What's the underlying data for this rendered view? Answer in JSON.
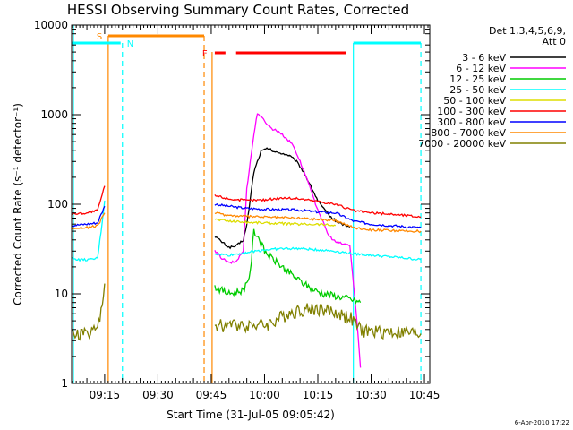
{
  "chart_data": {
    "type": "line",
    "title": "HESSI Observing Summary Count Rates, Corrected",
    "xlabel": "Start Time (31-Jul-05 09:05:42)",
    "ylabel": "Corrected Count Rate (s⁻¹ detector⁻¹)",
    "y_scale": "log",
    "ylim": [
      1,
      10000
    ],
    "xlim": [
      "09:05:42",
      "10:46:30"
    ],
    "x_ticks": [
      "09:15",
      "09:30",
      "09:45",
      "10:00",
      "10:15",
      "10:30",
      "10:45"
    ],
    "y_ticks": [
      "1",
      "10",
      "100",
      "1000",
      "10000"
    ],
    "grid": false,
    "legend_position": "right",
    "legend_title_lines": [
      "Det 1,3,4,5,6,9,",
      "Att 0"
    ],
    "timestamp": "6-Apr-2010 17:22",
    "series": [
      {
        "name": "3 - 6 keV",
        "color": "#000000",
        "points": [
          [
            "09:46",
            44
          ],
          [
            "09:48",
            38
          ],
          [
            "09:50",
            33
          ],
          [
            "09:52",
            34
          ],
          [
            "09:54",
            40
          ],
          [
            "09:55",
            58
          ],
          [
            "09:57",
            230
          ],
          [
            "09:59",
            390
          ],
          [
            "10:01",
            420
          ],
          [
            "10:03",
            380
          ],
          [
            "10:05",
            370
          ],
          [
            "10:07",
            350
          ],
          [
            "10:09",
            300
          ],
          [
            "10:11",
            230
          ],
          [
            "10:13",
            160
          ],
          [
            "10:15",
            110
          ],
          [
            "10:17",
            85
          ],
          [
            "10:19",
            70
          ],
          [
            "10:21",
            62
          ],
          [
            "10:23",
            58
          ],
          [
            "10:24",
            55
          ]
        ]
      },
      {
        "name": "6 - 12 keV",
        "color": "#ff00ff",
        "points": [
          [
            "09:46",
            30
          ],
          [
            "09:48",
            25
          ],
          [
            "09:50",
            22
          ],
          [
            "09:52",
            23
          ],
          [
            "09:54",
            30
          ],
          [
            "09:55",
            150
          ],
          [
            "09:57",
            600
          ],
          [
            "09:58",
            1050
          ],
          [
            "10:00",
            850
          ],
          [
            "10:02",
            700
          ],
          [
            "10:04",
            650
          ],
          [
            "10:06",
            550
          ],
          [
            "10:08",
            460
          ],
          [
            "10:10",
            300
          ],
          [
            "10:12",
            190
          ],
          [
            "10:14",
            110
          ],
          [
            "10:16",
            70
          ],
          [
            "10:18",
            45
          ],
          [
            "10:20",
            38
          ],
          [
            "10:22",
            36
          ],
          [
            "10:24",
            35
          ],
          [
            "10:26",
            5
          ],
          [
            "10:27",
            1.5
          ]
        ]
      },
      {
        "name": "12 - 25 keV",
        "color": "#00cc00",
        "points": [
          [
            "09:46",
            12
          ],
          [
            "09:48",
            11
          ],
          [
            "09:50",
            10
          ],
          [
            "09:52",
            10.5
          ],
          [
            "09:54",
            11
          ],
          [
            "09:56",
            17
          ],
          [
            "09:57",
            50
          ],
          [
            "09:58",
            45
          ],
          [
            "10:00",
            30
          ],
          [
            "10:02",
            25
          ],
          [
            "10:05",
            20
          ],
          [
            "10:08",
            16
          ],
          [
            "10:11",
            13
          ],
          [
            "10:14",
            11
          ],
          [
            "10:17",
            10
          ],
          [
            "10:20",
            9.5
          ],
          [
            "10:23",
            9
          ],
          [
            "10:25",
            8.5
          ],
          [
            "10:27",
            8
          ]
        ]
      },
      {
        "name": "25 - 50 keV",
        "color": "#00ffff",
        "points": [
          [
            "09:05:42",
            25
          ],
          [
            "09:08",
            24
          ],
          [
            "09:11",
            24
          ],
          [
            "09:13",
            25
          ],
          [
            "09:14",
            50
          ],
          [
            "09:15",
            110
          ],
          [
            "09:46",
            28
          ],
          [
            "09:50",
            27
          ],
          [
            "09:55",
            29
          ],
          [
            "10:00",
            31
          ],
          [
            "10:05",
            32
          ],
          [
            "10:10",
            32
          ],
          [
            "10:15",
            31
          ],
          [
            "10:20",
            30
          ],
          [
            "10:25",
            28
          ],
          [
            "10:30",
            27
          ],
          [
            "10:35",
            26
          ],
          [
            "10:40",
            25
          ],
          [
            "10:44",
            24
          ]
        ]
      },
      {
        "name": "50 - 100 keV",
        "color": "#dddd00",
        "points": [
          [
            "09:46",
            68
          ],
          [
            "09:50",
            65
          ],
          [
            "09:55",
            63
          ],
          [
            "10:00",
            62
          ],
          [
            "10:05",
            61
          ],
          [
            "10:10",
            60
          ],
          [
            "10:15",
            60
          ],
          [
            "10:20",
            58
          ]
        ]
      },
      {
        "name": "100 - 300 keV",
        "color": "#ff0000",
        "points": [
          [
            "09:05:42",
            78
          ],
          [
            "09:10",
            80
          ],
          [
            "09:13",
            85
          ],
          [
            "09:15",
            160
          ],
          [
            "09:46",
            125
          ],
          [
            "09:50",
            115
          ],
          [
            "09:55",
            110
          ],
          [
            "10:00",
            112
          ],
          [
            "10:05",
            118
          ],
          [
            "10:10",
            115
          ],
          [
            "10:15",
            108
          ],
          [
            "10:20",
            100
          ],
          [
            "10:25",
            85
          ],
          [
            "10:30",
            80
          ],
          [
            "10:35",
            78
          ],
          [
            "10:40",
            75
          ],
          [
            "10:44",
            72
          ]
        ]
      },
      {
        "name": "300 - 800 keV",
        "color": "#0000ff",
        "points": [
          [
            "09:05:42",
            58
          ],
          [
            "09:10",
            60
          ],
          [
            "09:13",
            62
          ],
          [
            "09:15",
            95
          ],
          [
            "09:46",
            100
          ],
          [
            "09:50",
            95
          ],
          [
            "09:55",
            90
          ],
          [
            "10:00",
            88
          ],
          [
            "10:05",
            87
          ],
          [
            "10:10",
            86
          ],
          [
            "10:15",
            82
          ],
          [
            "10:20",
            80
          ],
          [
            "10:25",
            65
          ],
          [
            "10:30",
            60
          ],
          [
            "10:35",
            58
          ],
          [
            "10:40",
            56
          ],
          [
            "10:44",
            55
          ]
        ]
      },
      {
        "name": "800 - 7000 keV",
        "color": "#ff8800",
        "points": [
          [
            "09:05:42",
            54
          ],
          [
            "09:10",
            55
          ],
          [
            "09:13",
            57
          ],
          [
            "09:15",
            80
          ],
          [
            "09:46",
            80
          ],
          [
            "09:50",
            75
          ],
          [
            "09:55",
            73
          ],
          [
            "10:00",
            72
          ],
          [
            "10:05",
            71
          ],
          [
            "10:10",
            70
          ],
          [
            "10:15",
            68
          ],
          [
            "10:20",
            66
          ],
          [
            "10:25",
            55
          ],
          [
            "10:30",
            52
          ],
          [
            "10:35",
            51
          ],
          [
            "10:40",
            50
          ],
          [
            "10:44",
            50
          ]
        ]
      },
      {
        "name": "7000 - 20000 keV",
        "color": "#808000",
        "points": [
          [
            "09:05:42",
            3.5
          ],
          [
            "09:08",
            3.6
          ],
          [
            "09:11",
            3.8
          ],
          [
            "09:13",
            4.2
          ],
          [
            "09:14",
            6
          ],
          [
            "09:15",
            13
          ],
          [
            "09:46",
            4.5
          ],
          [
            "09:50",
            4.5
          ],
          [
            "09:55",
            4.6
          ],
          [
            "10:00",
            4.5
          ],
          [
            "10:03",
            5
          ],
          [
            "10:06",
            6
          ],
          [
            "10:09",
            6.5
          ],
          [
            "10:12",
            6.8
          ],
          [
            "10:15",
            6.9
          ],
          [
            "10:18",
            6.5
          ],
          [
            "10:21",
            6
          ],
          [
            "10:24",
            5.5
          ],
          [
            "10:27",
            4
          ],
          [
            "10:30",
            3.8
          ],
          [
            "10:35",
            3.8
          ],
          [
            "10:40",
            3.7
          ],
          [
            "10:44",
            3.6
          ]
        ]
      }
    ],
    "flags": [
      {
        "label": "S",
        "color": "#ff8800",
        "from": "09:16",
        "to": "09:43"
      },
      {
        "label": "N",
        "color": "#00ffff",
        "from": "09:05:42",
        "to": "09:20",
        "also": [
          "10:25",
          "10:44"
        ]
      },
      {
        "label": "F",
        "color": "#ff0000",
        "segments": [
          [
            "09:46",
            "09:49"
          ],
          [
            "09:52",
            "10:23"
          ]
        ]
      }
    ]
  }
}
